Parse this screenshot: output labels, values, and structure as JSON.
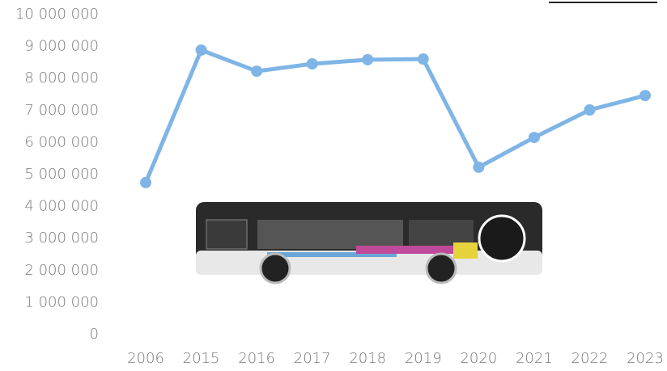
{
  "chart_data": {
    "type": "line",
    "categories": [
      "2006",
      "2015",
      "2016",
      "2017",
      "2018",
      "2019",
      "2020",
      "2021",
      "2022",
      "2023"
    ],
    "series": [
      {
        "color": "#7fb5e6",
        "values": [
          4750000,
          8890000,
          8230000,
          8460000,
          8590000,
          8610000,
          5230000,
          6160000,
          7020000,
          7470000
        ]
      }
    ],
    "ylim": [
      0,
      10000000
    ],
    "yticks": [
      0,
      {
        "value": 1000000,
        "label": "1 000 000"
      },
      {
        "value": 2000000,
        "label": "2 000 000"
      },
      {
        "value": 3000000,
        "label": "3 000 000"
      },
      {
        "value": 4000000,
        "label": "4 000 000"
      },
      {
        "value": 5000000,
        "label": "5 000 000"
      },
      {
        "value": 6000000,
        "label": "6 000 000"
      },
      {
        "value": 7000000,
        "label": "7 000 000"
      },
      {
        "value": 8000000,
        "label": "8 000 000"
      },
      {
        "value": 9000000,
        "label": "9 000 000"
      },
      {
        "value": 10000000,
        "label": "10 000 000"
      }
    ],
    "grid": false
  }
}
